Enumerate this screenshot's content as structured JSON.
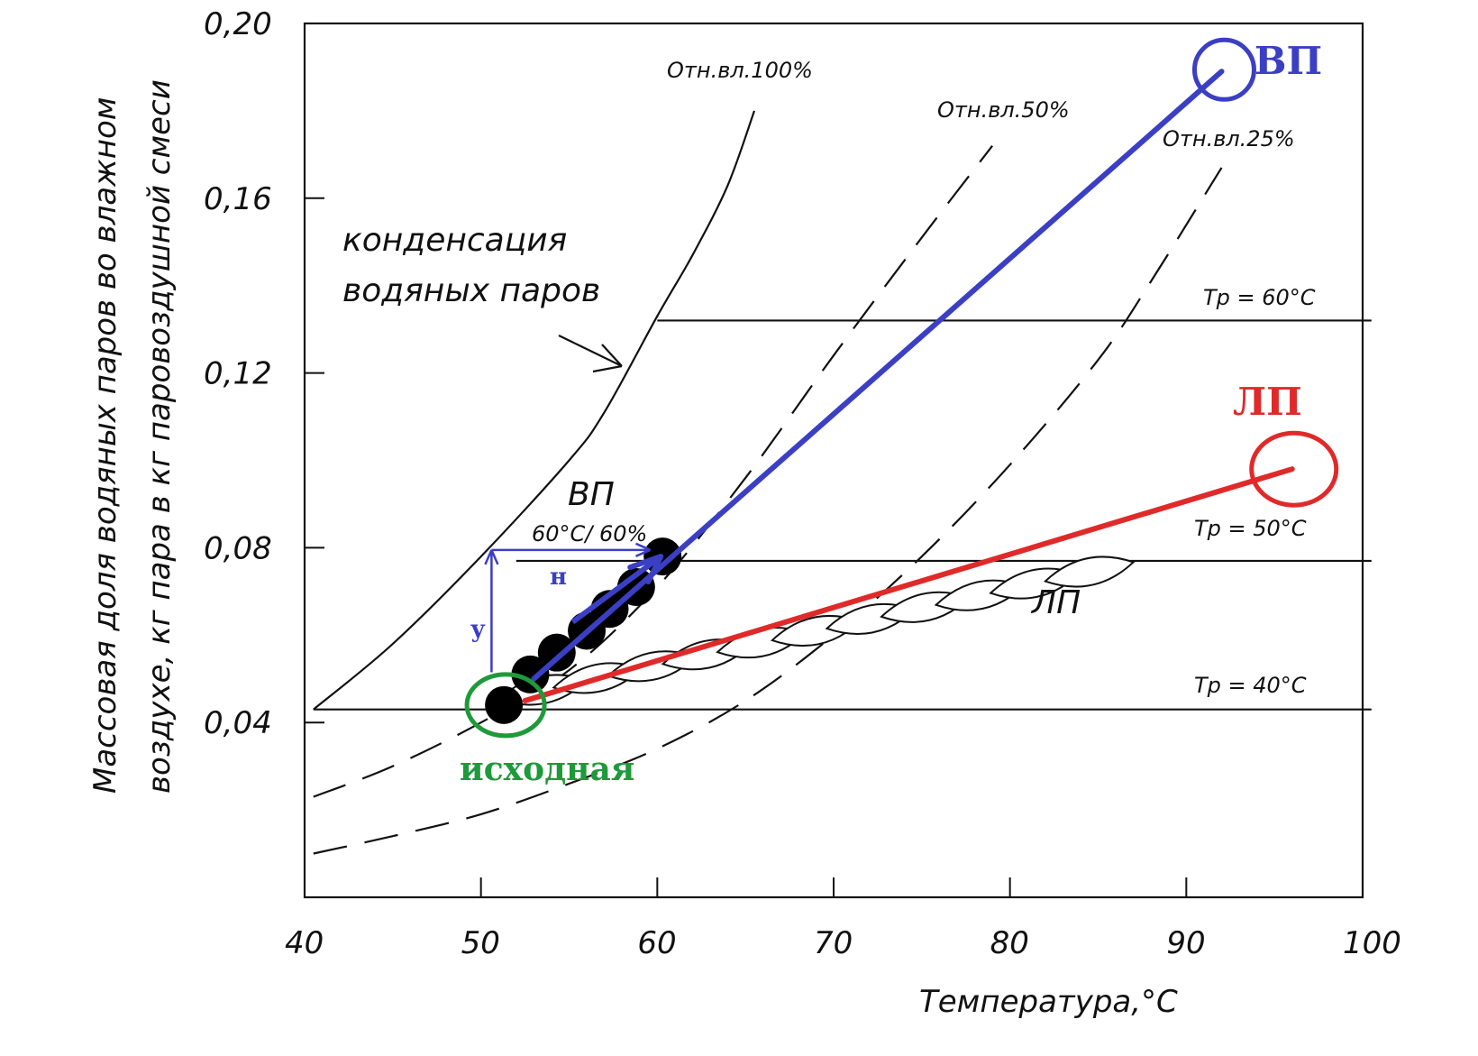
{
  "chart_data": {
    "type": "line",
    "xlabel": "Температура,°C",
    "ylabel_lines": [
      "Массовая доля водяных паров во влажном",
      "воздухе, кг пара в кг паровоздушной смеси"
    ],
    "xlim": [
      40,
      100
    ],
    "ylim": [
      0.0,
      0.2
    ],
    "x_ticks": [
      "40",
      "50",
      "60",
      "70",
      "80",
      "90",
      "100"
    ],
    "y_ticks": [
      {
        "value": 0.04,
        "label": "0,04"
      },
      {
        "value": 0.08,
        "label": "0,08"
      },
      {
        "value": 0.12,
        "label": "0,12"
      },
      {
        "value": 0.16,
        "label": "0,16"
      },
      {
        "value": 0.2,
        "label": "0,20"
      }
    ],
    "grid": false,
    "humidity_curves": [
      {
        "label": "Отн.вл.100%",
        "style": "solid",
        "points": [
          [
            40.5,
            0.043
          ],
          [
            45,
            0.058
          ],
          [
            50,
            0.078
          ],
          [
            55,
            0.1
          ],
          [
            57,
            0.111
          ],
          [
            60,
            0.133
          ],
          [
            62,
            0.147
          ],
          [
            64,
            0.163
          ],
          [
            65.5,
            0.18
          ]
        ]
      },
      {
        "label": "Отн.вл.50%",
        "style": "dashed",
        "points": [
          [
            40.5,
            0.023
          ],
          [
            45,
            0.03
          ],
          [
            50,
            0.04
          ],
          [
            55,
            0.052
          ],
          [
            60,
            0.071
          ],
          [
            65,
            0.096
          ],
          [
            70,
            0.124
          ],
          [
            75,
            0.151
          ],
          [
            79,
            0.172
          ]
        ]
      },
      {
        "label": "Отн.вл.25%",
        "style": "dashed",
        "points": [
          [
            40.5,
            0.01
          ],
          [
            45,
            0.014
          ],
          [
            50,
            0.019
          ],
          [
            55,
            0.026
          ],
          [
            60,
            0.034
          ],
          [
            65,
            0.045
          ],
          [
            70,
            0.06
          ],
          [
            75,
            0.078
          ],
          [
            80,
            0.099
          ],
          [
            85,
            0.123
          ],
          [
            88,
            0.141
          ],
          [
            92,
            0.167
          ]
        ]
      }
    ],
    "dew_point_lines": [
      {
        "label": "Tp = 40°C",
        "y": 0.043,
        "x_from": 40.5,
        "x_to": 100.5
      },
      {
        "label": "Tp = 50°C",
        "y": 0.077,
        "x_from": 52,
        "x_to": 100.5
      },
      {
        "label": "Tp = 60°C",
        "y": 0.132,
        "x_from": 60,
        "x_to": 100.5
      }
    ],
    "annotations": {
      "condensation": [
        "конденсация",
        "водяных паров"
      ],
      "vp_label": "ВП",
      "vp_condition": "60°C/ 60%",
      "lp_label": "ЛП"
    },
    "processes": [
      {
        "name": "ВП",
        "color": "#3b3fc4",
        "from": [
          53,
          0.05
        ],
        "to": [
          92,
          0.189
        ]
      },
      {
        "name": "ЛП",
        "color": "#e02a2a",
        "from": [
          52.5,
          0.045
        ],
        "to": [
          96,
          0.098
        ]
      }
    ],
    "start_point": {
      "label": "исходная",
      "color": "#1e9a3a",
      "x": 51.3,
      "y": 0.044
    },
    "vp_points": [
      [
        51.3,
        0.044
      ],
      [
        52.8,
        0.051
      ],
      [
        54.3,
        0.056
      ],
      [
        56,
        0.061
      ],
      [
        57.3,
        0.066
      ],
      [
        58.8,
        0.071
      ],
      [
        60.3,
        0.078
      ]
    ],
    "lp_leaves_count": 11,
    "guides": {
      "y_label": "у",
      "h_label": "н",
      "color": "#3b3fc4"
    }
  }
}
